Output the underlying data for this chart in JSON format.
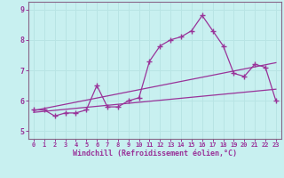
{
  "xlabel": "Windchill (Refroidissement éolien,°C)",
  "background_color": "#c8f0f0",
  "line_color": "#993399",
  "grid_color": "#b8e4e4",
  "spine_color": "#886688",
  "x_hours": [
    0,
    1,
    2,
    3,
    4,
    5,
    6,
    7,
    8,
    9,
    10,
    11,
    12,
    13,
    14,
    15,
    16,
    17,
    18,
    19,
    20,
    21,
    22,
    23
  ],
  "windchill": [
    5.7,
    5.7,
    5.5,
    5.6,
    5.6,
    5.7,
    6.5,
    5.8,
    5.8,
    6.0,
    6.1,
    7.3,
    7.8,
    8.0,
    8.1,
    8.3,
    8.8,
    8.3,
    7.8,
    6.9,
    6.8,
    7.2,
    7.1,
    6.0
  ],
  "trend1_x": [
    0,
    23
  ],
  "trend1_y": [
    5.68,
    7.25
  ],
  "trend2_x": [
    0,
    23
  ],
  "trend2_y": [
    5.62,
    6.38
  ],
  "ylim": [
    4.75,
    9.25
  ],
  "xlim": [
    -0.5,
    23.5
  ],
  "yticks": [
    5,
    6,
    7,
    8,
    9
  ],
  "xticks": [
    0,
    1,
    2,
    3,
    4,
    5,
    6,
    7,
    8,
    9,
    10,
    11,
    12,
    13,
    14,
    15,
    16,
    17,
    18,
    19,
    20,
    21,
    22,
    23
  ]
}
